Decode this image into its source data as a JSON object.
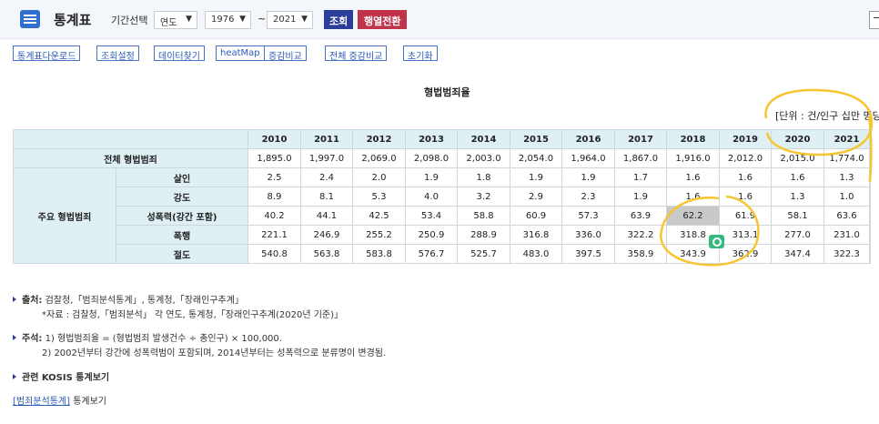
{
  "header": {
    "title": "통계표",
    "period_label": "기간선택",
    "period_type": "연도",
    "start_year": "1976",
    "tilde": "~",
    "end_year": "2021",
    "query_button": "조회",
    "transpose_button": "행열전환"
  },
  "toolbar": [
    "통계표다운로드",
    "조회설정",
    "데이터찾기",
    "heatMap",
    "증감비교",
    "전체 증감비교",
    "초기화"
  ],
  "table": {
    "title": "형법범죄율",
    "unit": "[단위 : 건/인구 십만 명당",
    "years": [
      "2010",
      "2011",
      "2012",
      "2013",
      "2014",
      "2015",
      "2016",
      "2017",
      "2018",
      "2019",
      "2020",
      "2021"
    ],
    "total_label": "전체 형법범죄",
    "total": [
      "1,895.0",
      "1,997.0",
      "2,069.0",
      "2,098.0",
      "2,003.0",
      "2,054.0",
      "1,964.0",
      "1,867.0",
      "1,916.0",
      "2,012.0",
      "2,015.0",
      "1,774.0"
    ],
    "group_label": "주요 형법범죄",
    "rows": [
      {
        "label": "살인",
        "values": [
          "2.5",
          "2.4",
          "2.0",
          "1.9",
          "1.8",
          "1.9",
          "1.9",
          "1.7",
          "1.6",
          "1.6",
          "1.6",
          "1.3"
        ]
      },
      {
        "label": "강도",
        "values": [
          "8.9",
          "8.1",
          "5.3",
          "4.0",
          "3.2",
          "2.9",
          "2.3",
          "1.9",
          "1.6",
          "1.6",
          "1.3",
          "1.0"
        ]
      },
      {
        "label": "성폭력(강간 포함)",
        "values": [
          "40.2",
          "44.1",
          "42.5",
          "53.4",
          "58.8",
          "60.9",
          "57.3",
          "63.9",
          "62.2",
          "61.9",
          "58.1",
          "63.6"
        ]
      },
      {
        "label": "폭행",
        "values": [
          "221.1",
          "246.9",
          "255.2",
          "250.9",
          "288.9",
          "316.8",
          "336.0",
          "322.2",
          "318.8",
          "313.1",
          "277.0",
          "231.0"
        ]
      },
      {
        "label": "절도",
        "values": [
          "540.8",
          "563.8",
          "583.8",
          "576.7",
          "525.7",
          "483.0",
          "397.5",
          "358.9",
          "343.9",
          "362.9",
          "347.4",
          "322.3"
        ]
      }
    ]
  },
  "notes": {
    "source_label": "출처:",
    "source_text": "검찰청,「범죄분석통계」, 통계청,「장래인구추계」",
    "source_detail": "*자료 : 검찰청,「범죄분석」 각 연도, 통계청,「장래인구추계(2020년 기준)」",
    "notes_label": "주석:",
    "note1": "1) 형법범죄율 = (형법범죄 발생건수 ÷ 총인구) × 100,000.",
    "note2": "2) 2002년부터 강간에 성폭력범이 포함되며, 2014년부터는 성폭력으로 분류명이 변경됨.",
    "related": "관련 KOSIS 통계보기",
    "link_text": "[범죄분석통계]",
    "link_suffix": "통계보기"
  },
  "colors": {
    "header_bg": "#dff0f4",
    "annotation": "#f7c531",
    "accent": "#2c3f98",
    "highlight": "#c9c9c9"
  }
}
